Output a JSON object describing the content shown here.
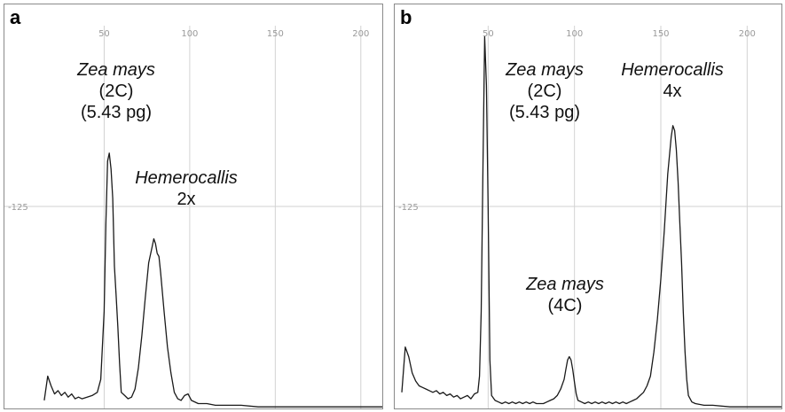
{
  "chart_data": [
    {
      "type": "line",
      "panel_label": "a",
      "xlim": [
        0,
        225
      ],
      "ylim": [
        0,
        250
      ],
      "x_ticks": [
        50,
        100,
        150,
        200
      ],
      "y_ticks": [
        125
      ],
      "grid": true,
      "annotations": [
        {
          "name": "Zea mays",
          "lines": [
            "(2C)",
            "(5.43 pg)"
          ]
        },
        {
          "name": "Hemerocallis",
          "lines": [
            "2x"
          ]
        }
      ],
      "series": [
        {
          "points": [
            [
              15,
              5
            ],
            [
              17,
              20
            ],
            [
              19,
              14
            ],
            [
              21,
              9
            ],
            [
              23,
              11
            ],
            [
              25,
              8
            ],
            [
              27,
              10
            ],
            [
              29,
              7
            ],
            [
              31,
              9
            ],
            [
              33,
              6
            ],
            [
              35,
              7
            ],
            [
              37,
              6
            ],
            [
              40,
              7
            ],
            [
              43,
              8
            ],
            [
              46,
              10
            ],
            [
              48,
              18
            ],
            [
              50,
              60
            ],
            [
              51,
              115
            ],
            [
              52,
              153
            ],
            [
              53,
              158
            ],
            [
              54,
              148
            ],
            [
              55,
              130
            ],
            [
              56,
              88
            ],
            [
              57,
              70
            ],
            [
              58,
              50
            ],
            [
              59,
              28
            ],
            [
              60,
              10
            ],
            [
              62,
              8
            ],
            [
              64,
              6
            ],
            [
              66,
              7
            ],
            [
              68,
              12
            ],
            [
              70,
              25
            ],
            [
              72,
              45
            ],
            [
              74,
              68
            ],
            [
              76,
              90
            ],
            [
              78,
              100
            ],
            [
              79,
              105
            ],
            [
              80,
              102
            ],
            [
              81,
              96
            ],
            [
              82,
              94
            ],
            [
              83,
              84
            ],
            [
              85,
              60
            ],
            [
              87,
              38
            ],
            [
              89,
              22
            ],
            [
              91,
              10
            ],
            [
              93,
              6
            ],
            [
              95,
              5
            ],
            [
              97,
              8
            ],
            [
              99,
              9
            ],
            [
              101,
              5
            ],
            [
              105,
              3
            ],
            [
              110,
              3
            ],
            [
              115,
              2
            ],
            [
              120,
              2
            ],
            [
              130,
              2
            ],
            [
              140,
              1
            ],
            [
              150,
              1
            ],
            [
              160,
              1
            ],
            [
              170,
              1
            ],
            [
              180,
              1
            ],
            [
              190,
              1
            ],
            [
              200,
              1
            ],
            [
              210,
              1
            ],
            [
              220,
              1
            ],
            [
              225,
              1
            ]
          ]
        }
      ]
    },
    {
      "type": "line",
      "panel_label": "b",
      "xlim": [
        0,
        225
      ],
      "ylim": [
        0,
        250
      ],
      "x_ticks": [
        50,
        100,
        150,
        200
      ],
      "y_ticks": [
        125
      ],
      "grid": true,
      "annotations": [
        {
          "name": "Zea mays",
          "lines": [
            "(2C)",
            "(5.43 pg)"
          ]
        },
        {
          "name": "Hemerocallis",
          "lines": [
            "4x"
          ]
        },
        {
          "name": "Zea mays",
          "lines": [
            "(4C)"
          ]
        }
      ],
      "series": [
        {
          "points": [
            [
              0,
              10
            ],
            [
              2,
              38
            ],
            [
              4,
              32
            ],
            [
              6,
              22
            ],
            [
              8,
              17
            ],
            [
              10,
              14
            ],
            [
              12,
              13
            ],
            [
              14,
              12
            ],
            [
              16,
              11
            ],
            [
              18,
              10
            ],
            [
              20,
              11
            ],
            [
              22,
              9
            ],
            [
              24,
              10
            ],
            [
              26,
              8
            ],
            [
              28,
              9
            ],
            [
              30,
              7
            ],
            [
              32,
              8
            ],
            [
              34,
              6
            ],
            [
              36,
              7
            ],
            [
              38,
              8
            ],
            [
              40,
              6
            ],
            [
              42,
              9
            ],
            [
              44,
              10
            ],
            [
              45,
              20
            ],
            [
              46,
              60
            ],
            [
              47,
              150
            ],
            [
              48,
              230
            ],
            [
              49,
              200
            ],
            [
              50,
              125
            ],
            [
              51,
              30
            ],
            [
              52,
              8
            ],
            [
              54,
              5
            ],
            [
              56,
              4
            ],
            [
              58,
              3
            ],
            [
              60,
              4
            ],
            [
              62,
              3
            ],
            [
              64,
              4
            ],
            [
              66,
              3
            ],
            [
              68,
              4
            ],
            [
              70,
              3
            ],
            [
              72,
              4
            ],
            [
              74,
              3
            ],
            [
              76,
              4
            ],
            [
              78,
              3
            ],
            [
              80,
              3
            ],
            [
              82,
              3
            ],
            [
              84,
              4
            ],
            [
              86,
              5
            ],
            [
              88,
              6
            ],
            [
              90,
              8
            ],
            [
              92,
              12
            ],
            [
              94,
              18
            ],
            [
              95,
              24
            ],
            [
              96,
              30
            ],
            [
              97,
              32
            ],
            [
              98,
              30
            ],
            [
              99,
              24
            ],
            [
              100,
              16
            ],
            [
              101,
              9
            ],
            [
              102,
              5
            ],
            [
              104,
              4
            ],
            [
              106,
              3
            ],
            [
              108,
              4
            ],
            [
              110,
              3
            ],
            [
              112,
              4
            ],
            [
              114,
              3
            ],
            [
              116,
              4
            ],
            [
              118,
              3
            ],
            [
              120,
              4
            ],
            [
              122,
              3
            ],
            [
              124,
              4
            ],
            [
              126,
              3
            ],
            [
              128,
              4
            ],
            [
              130,
              3
            ],
            [
              132,
              4
            ],
            [
              134,
              5
            ],
            [
              136,
              6
            ],
            [
              138,
              8
            ],
            [
              140,
              10
            ],
            [
              142,
              14
            ],
            [
              144,
              20
            ],
            [
              146,
              35
            ],
            [
              148,
              55
            ],
            [
              150,
              80
            ],
            [
              152,
              110
            ],
            [
              154,
              145
            ],
            [
              156,
              168
            ],
            [
              157,
              175
            ],
            [
              158,
              172
            ],
            [
              159,
              160
            ],
            [
              160,
              140
            ],
            [
              161,
              115
            ],
            [
              162,
              90
            ],
            [
              163,
              60
            ],
            [
              164,
              35
            ],
            [
              165,
              18
            ],
            [
              166,
              8
            ],
            [
              168,
              4
            ],
            [
              170,
              3
            ],
            [
              175,
              2
            ],
            [
              180,
              2
            ],
            [
              190,
              1
            ],
            [
              200,
              1
            ],
            [
              210,
              1
            ],
            [
              220,
              1
            ],
            [
              225,
              1
            ]
          ]
        }
      ]
    }
  ]
}
